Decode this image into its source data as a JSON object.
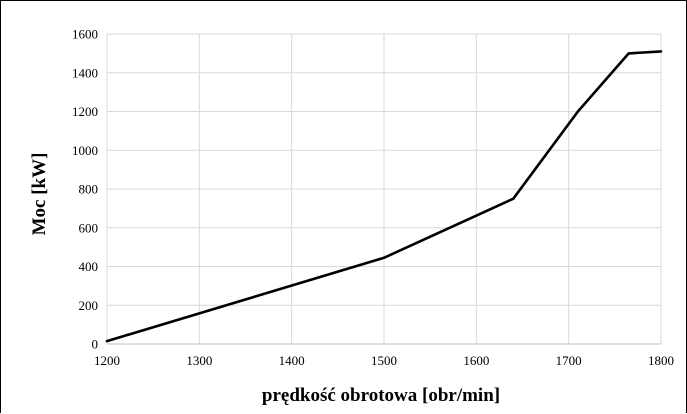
{
  "chart_data": {
    "type": "line",
    "title": "",
    "xlabel": "prędkość obrotowa  [obr/min]",
    "ylabel": "Moc [kW]",
    "xlim": [
      1200,
      1800
    ],
    "ylim": [
      0,
      1600
    ],
    "xticks": [
      1200,
      1300,
      1400,
      1500,
      1600,
      1700,
      1800
    ],
    "yticks": [
      0,
      200,
      400,
      600,
      800,
      1000,
      1200,
      1400,
      1600
    ],
    "grid": true,
    "legend": "none",
    "series": [
      {
        "color": "#000000",
        "x": [
          1200,
          1500,
          1640,
          1710,
          1765,
          1800
        ],
        "y": [
          15,
          445,
          750,
          1200,
          1500,
          1510
        ]
      }
    ]
  }
}
